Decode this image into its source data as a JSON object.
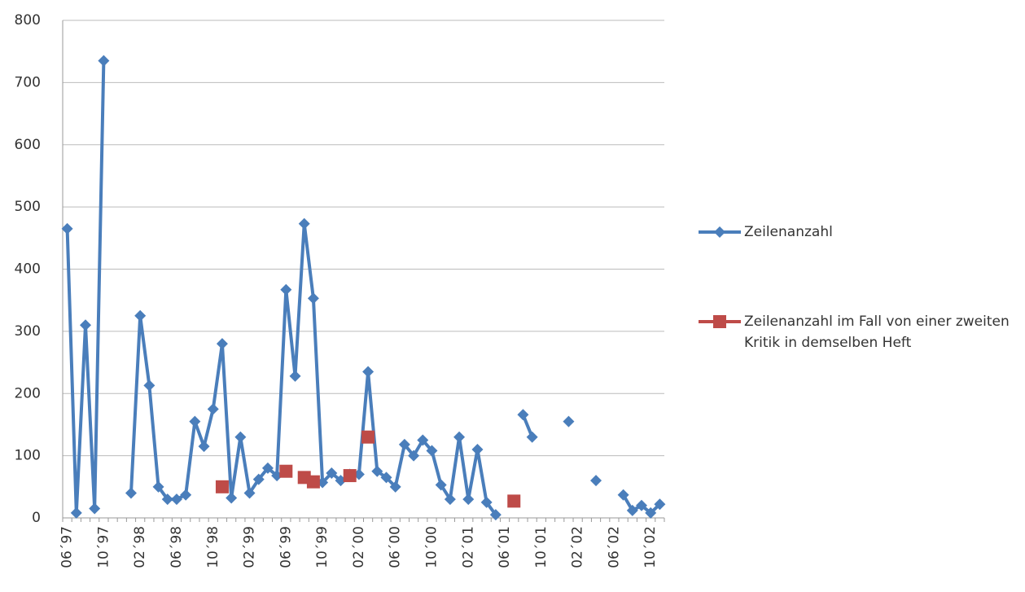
{
  "chart_data": {
    "type": "line",
    "categories": [
      "06´97",
      null,
      null,
      null,
      "10´97",
      null,
      null,
      null,
      "02´98",
      null,
      null,
      null,
      "06´98",
      null,
      null,
      null,
      "10´98",
      null,
      null,
      null,
      "02´99",
      null,
      null,
      null,
      "06´99",
      null,
      null,
      null,
      "10´99",
      null,
      null,
      null,
      "02´00",
      null,
      null,
      null,
      "06´00",
      null,
      null,
      null,
      "10´00",
      null,
      null,
      null,
      "02´01",
      null,
      null,
      null,
      "06´01",
      null,
      null,
      null,
      "10´01",
      null,
      null,
      null,
      "02´02",
      null,
      null,
      null,
      "06´02",
      null,
      null,
      null,
      "10´02",
      null
    ],
    "series": [
      {
        "name": "Zeilenanzahl",
        "color": "#4a7ebb",
        "marker": "diamond",
        "values": [
          465,
          8,
          310,
          15,
          735,
          null,
          null,
          40,
          325,
          213,
          50,
          30,
          30,
          37,
          155,
          115,
          175,
          280,
          32,
          130,
          40,
          62,
          80,
          68,
          367,
          228,
          473,
          353,
          57,
          72,
          60,
          70,
          70,
          235,
          75,
          65,
          50,
          118,
          100,
          125,
          108,
          53,
          30,
          130,
          30,
          110,
          25,
          5,
          null,
          null,
          166,
          130,
          null,
          null,
          null,
          155,
          null,
          null,
          60,
          null,
          null,
          37,
          12,
          20,
          8,
          22
        ]
      },
      {
        "name": "Zeilenanzahl im Fall von einer zweiten Kritik in demselben Heft",
        "color": "#be4b48",
        "marker": "square",
        "values": [
          null,
          null,
          null,
          null,
          null,
          null,
          null,
          null,
          null,
          null,
          null,
          null,
          null,
          null,
          null,
          null,
          null,
          50,
          null,
          null,
          null,
          null,
          null,
          null,
          75,
          null,
          65,
          58,
          null,
          null,
          null,
          68,
          null,
          130,
          null,
          null,
          null,
          null,
          null,
          null,
          null,
          null,
          null,
          null,
          null,
          null,
          null,
          null,
          null,
          27,
          null,
          null,
          null,
          null,
          null,
          null,
          null,
          null,
          null,
          null,
          null,
          null,
          null,
          null,
          null,
          null
        ]
      }
    ],
    "ylim": [
      0,
      800
    ],
    "yticks": [
      0,
      100,
      200,
      300,
      400,
      500,
      600,
      700,
      800
    ],
    "grid": true
  }
}
